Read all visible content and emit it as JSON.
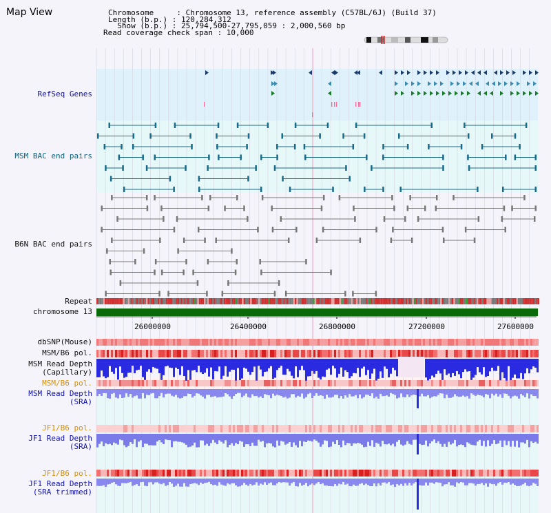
{
  "page": {
    "title": "Map View"
  },
  "info": {
    "line1": "Chromosome     : Chromosome 13, reference assembly (C57BL/6J) (Build 37)",
    "line2": "Length (b.p.) : 120,284,312",
    "line3": "  Show (b.p.) : 25,794,500-27,795,059 : 2,000,560 bp",
    "line4": "Read coverage check span : 10,000"
  },
  "tracks": {
    "refseq": "RefSeq Genes",
    "msm_bac": "MSM BAC end pairs",
    "b6n_bac": "B6N BAC end pairs",
    "repeat": "Repeat",
    "chromosome": "chromosome 13",
    "dbsnp": "dbSNP(Mouse)",
    "msm_b6_pol_1": "MSM/B6 pol.",
    "msm_read_depth_cap_1": "MSM Read Depth",
    "msm_read_depth_cap_2": "(Capillary)",
    "msm_b6_pol_2": "MSM/B6 pol.",
    "msm_read_depth_sra_1": "MSM Read Depth",
    "msm_read_depth_sra_2": "(SRA)",
    "jf1_b6_pol_1": "JF1/B6 pol.",
    "jf1_read_depth_sra_1": "JF1 Read Depth",
    "jf1_read_depth_sra_2": "(SRA)",
    "jf1_b6_pol_2": "JF1/B6 pol.",
    "jf1_read_depth_trim_1": "JF1 Read Depth",
    "jf1_read_depth_trim_2": "(SRA trimmed)"
  },
  "axis": {
    "ticks": [
      "26000000",
      "26400000",
      "26800000",
      "27200000",
      "27600000"
    ]
  },
  "colors": {
    "refseq_dark": "#1a3a6a",
    "refseq_mid": "#3a8ab0",
    "refseq_green": "#1a7a2a",
    "bac_msm": "#1a6a8a",
    "bac_b6n": "#777777",
    "chromosome_bar": "#0a6a0a",
    "depth_blue": "#2a2ae0",
    "depth_light": "#8888ee",
    "pol_red": "#e84040",
    "pol_pink": "#f8b0b0"
  }
}
